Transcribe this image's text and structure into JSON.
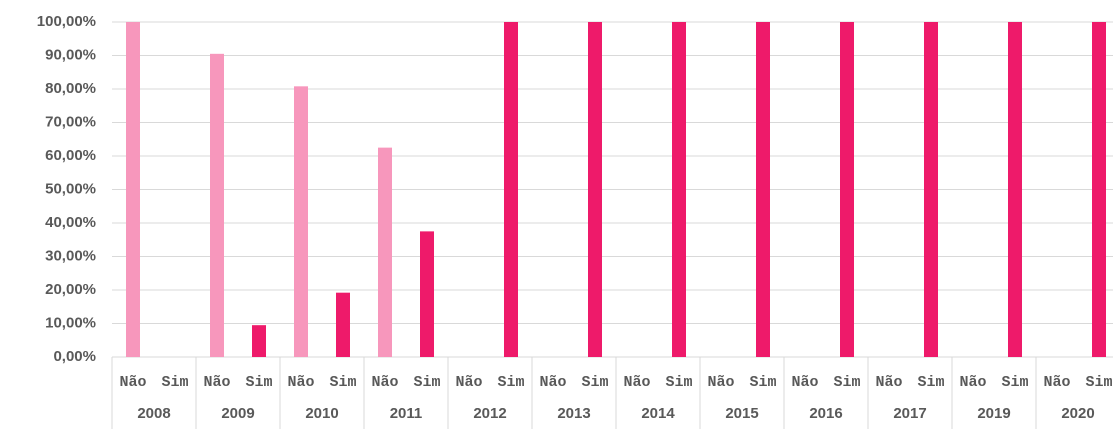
{
  "chart_data": {
    "type": "bar",
    "groups": [
      "2008",
      "2009",
      "2010",
      "2011",
      "2012",
      "2013",
      "2014",
      "2015",
      "2016",
      "2017",
      "2019",
      "2020"
    ],
    "categories": [
      "Não",
      "Sim",
      "Não",
      "Sim",
      "Não",
      "Sim",
      "Não",
      "Sim",
      "Não",
      "Sim",
      "Não",
      "Sim",
      "Não",
      "Sim",
      "Não",
      "Sim",
      "Não",
      "Sim",
      "Não",
      "Sim",
      "Não",
      "Sim",
      "Não",
      "Sim"
    ],
    "values": [
      100,
      null,
      90.5,
      9.5,
      80.8,
      19.2,
      62.5,
      37.5,
      null,
      100,
      null,
      100,
      null,
      100,
      null,
      100,
      null,
      100,
      null,
      100,
      null,
      100,
      null,
      100
    ],
    "colors": [
      "#f797bc",
      "#ee1a6a"
    ],
    "ylim": [
      0,
      100
    ],
    "yticks": [
      {
        "value": 0,
        "label": "0,00%"
      },
      {
        "value": 10,
        "label": "10,00%"
      },
      {
        "value": 20,
        "label": "20,00%"
      },
      {
        "value": 30,
        "label": "30,00%"
      },
      {
        "value": 40,
        "label": "40,00%"
      },
      {
        "value": 50,
        "label": "50,00%"
      },
      {
        "value": 60,
        "label": "60,00%"
      },
      {
        "value": 70,
        "label": "70,00%"
      },
      {
        "value": 80,
        "label": "80,00%"
      },
      {
        "value": 90,
        "label": "90,00%"
      },
      {
        "value": 100,
        "label": "100,00%"
      }
    ],
    "grid": true
  }
}
